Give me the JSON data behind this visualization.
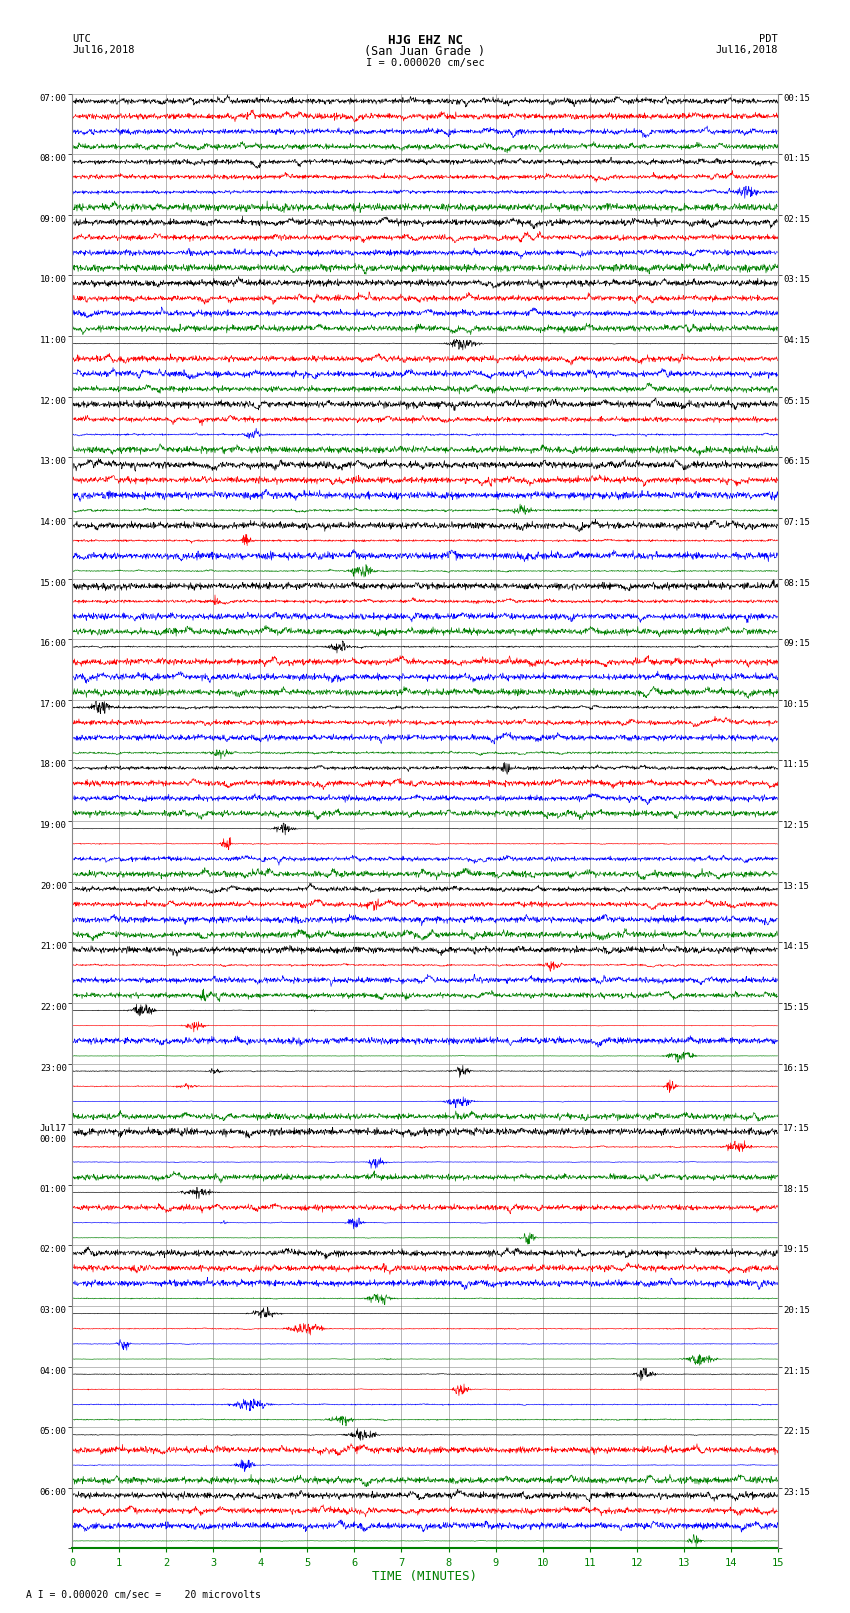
{
  "title_line1": "HJG EHZ NC",
  "title_line2": "(San Juan Grade )",
  "scale_label": "I = 0.000020 cm/sec",
  "bottom_label": "A I = 0.000020 cm/sec =    20 microvolts",
  "xlabel": "TIME (MINUTES)",
  "utc_label": "UTC",
  "utc_date": "Jul16,2018",
  "pdt_label": "PDT",
  "pdt_date": "Jul16,2018",
  "left_times": [
    "07:00",
    "08:00",
    "09:00",
    "10:00",
    "11:00",
    "12:00",
    "13:00",
    "14:00",
    "15:00",
    "16:00",
    "17:00",
    "18:00",
    "19:00",
    "20:00",
    "21:00",
    "22:00",
    "23:00",
    "Jul17\n00:00",
    "01:00",
    "02:00",
    "03:00",
    "04:00",
    "05:00",
    "06:00"
  ],
  "right_times": [
    "00:15",
    "01:15",
    "02:15",
    "03:15",
    "04:15",
    "05:15",
    "06:15",
    "07:15",
    "08:15",
    "09:15",
    "10:15",
    "11:15",
    "12:15",
    "13:15",
    "14:15",
    "15:15",
    "16:15",
    "17:15",
    "18:15",
    "19:15",
    "20:15",
    "21:15",
    "22:15",
    "23:15"
  ],
  "n_groups": 24,
  "n_cols": 4,
  "row_colors": [
    "black",
    "red",
    "blue",
    "green"
  ],
  "bg_color": "white",
  "grid_color": "#999999",
  "time_minutes": 15,
  "seed": 12345,
  "fig_width": 8.5,
  "fig_height": 16.13
}
